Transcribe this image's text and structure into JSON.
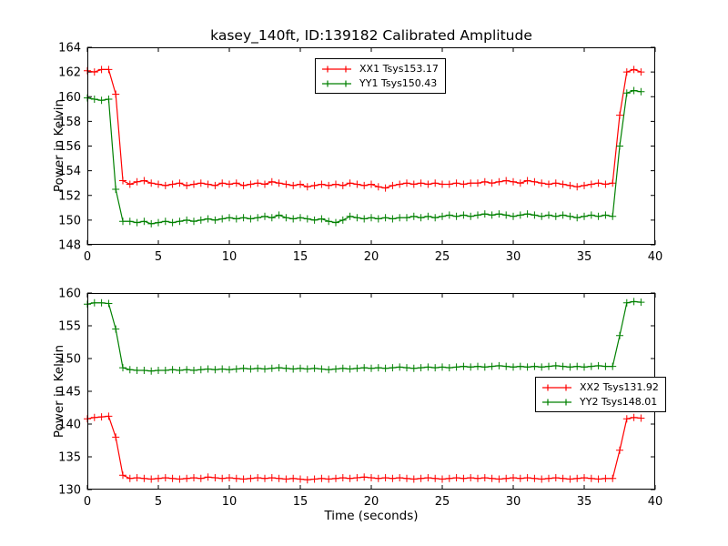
{
  "title": "kasey_140ft, ID:139182 Calibrated Amplitude",
  "colors": {
    "xx": "#ff0000",
    "yy": "#008000",
    "axes": "#000000",
    "background": "#ffffff"
  },
  "chart_data": [
    {
      "type": "line",
      "ylabel": "Power in Kelvin",
      "xlabel": "",
      "xlim": [
        0,
        40
      ],
      "ylim": [
        148,
        164
      ],
      "xticks": [
        0,
        5,
        10,
        15,
        20,
        25,
        30,
        35,
        40
      ],
      "yticks": [
        148,
        150,
        152,
        154,
        156,
        158,
        160,
        162,
        164
      ],
      "grid": false,
      "legend_position": "upper center",
      "x": [
        0,
        0.5,
        1,
        1.5,
        2,
        2.5,
        3,
        3.5,
        4,
        4.5,
        5,
        5.5,
        6,
        6.5,
        7,
        7.5,
        8,
        8.5,
        9,
        9.5,
        10,
        10.5,
        11,
        11.5,
        12,
        12.5,
        13,
        13.5,
        14,
        14.5,
        15,
        15.5,
        16,
        16.5,
        17,
        17.5,
        18,
        18.5,
        19,
        19.5,
        20,
        20.5,
        21,
        21.5,
        22,
        22.5,
        23,
        23.5,
        24,
        24.5,
        25,
        25.5,
        26,
        26.5,
        27,
        27.5,
        28,
        28.5,
        29,
        29.5,
        30,
        30.5,
        31,
        31.5,
        32,
        32.5,
        33,
        33.5,
        34,
        34.5,
        35,
        35.5,
        36,
        36.5,
        37,
        37.5,
        38,
        38.5,
        39
      ],
      "series": [
        {
          "name": "XX1 Tsys153.17",
          "tsys": 153.17,
          "color": "#ff0000",
          "marker": "plus",
          "values": [
            162.1,
            162.0,
            162.2,
            162.2,
            160.2,
            153.2,
            152.9,
            153.1,
            153.2,
            153.0,
            152.9,
            152.8,
            152.9,
            153.0,
            152.8,
            152.9,
            153.0,
            152.9,
            152.8,
            153.0,
            152.9,
            153.0,
            152.8,
            152.9,
            153.0,
            152.9,
            153.1,
            153.0,
            152.9,
            152.8,
            152.9,
            152.7,
            152.8,
            152.9,
            152.8,
            152.9,
            152.8,
            153.0,
            152.9,
            152.8,
            152.9,
            152.7,
            152.6,
            152.8,
            152.9,
            153.0,
            152.9,
            153.0,
            152.9,
            153.0,
            152.9,
            152.9,
            153.0,
            152.9,
            153.0,
            153.0,
            153.1,
            153.0,
            153.1,
            153.2,
            153.1,
            153.0,
            153.2,
            153.1,
            153.0,
            152.9,
            153.0,
            152.9,
            152.8,
            152.7,
            152.8,
            152.9,
            153.0,
            152.9,
            153.0,
            158.5,
            162.0,
            162.2,
            162.0
          ]
        },
        {
          "name": "YY1 Tsys150.43",
          "tsys": 150.43,
          "color": "#008000",
          "marker": "plus",
          "values": [
            159.9,
            159.8,
            159.7,
            159.8,
            152.5,
            149.9,
            149.9,
            149.8,
            149.9,
            149.7,
            149.8,
            149.9,
            149.8,
            149.9,
            150.0,
            149.9,
            150.0,
            150.1,
            150.0,
            150.1,
            150.2,
            150.1,
            150.2,
            150.1,
            150.2,
            150.3,
            150.2,
            150.4,
            150.2,
            150.1,
            150.2,
            150.1,
            150.0,
            150.1,
            149.9,
            149.8,
            150.0,
            150.3,
            150.2,
            150.1,
            150.2,
            150.1,
            150.2,
            150.1,
            150.2,
            150.2,
            150.3,
            150.2,
            150.3,
            150.2,
            150.3,
            150.4,
            150.3,
            150.4,
            150.3,
            150.4,
            150.5,
            150.4,
            150.5,
            150.4,
            150.3,
            150.4,
            150.5,
            150.4,
            150.3,
            150.4,
            150.3,
            150.4,
            150.3,
            150.2,
            150.3,
            150.4,
            150.3,
            150.4,
            150.3,
            156.0,
            160.3,
            160.5,
            160.4
          ]
        }
      ]
    },
    {
      "type": "line",
      "ylabel": "Power in Kelvin",
      "xlabel": "Time (seconds)",
      "xlim": [
        0,
        40
      ],
      "ylim": [
        130,
        160
      ],
      "xticks": [
        0,
        5,
        10,
        15,
        20,
        25,
        30,
        35,
        40
      ],
      "yticks": [
        130,
        135,
        140,
        145,
        150,
        155,
        160
      ],
      "grid": false,
      "legend_position": "right",
      "x": [
        0,
        0.5,
        1,
        1.5,
        2,
        2.5,
        3,
        3.5,
        4,
        4.5,
        5,
        5.5,
        6,
        6.5,
        7,
        7.5,
        8,
        8.5,
        9,
        9.5,
        10,
        10.5,
        11,
        11.5,
        12,
        12.5,
        13,
        13.5,
        14,
        14.5,
        15,
        15.5,
        16,
        16.5,
        17,
        17.5,
        18,
        18.5,
        19,
        19.5,
        20,
        20.5,
        21,
        21.5,
        22,
        22.5,
        23,
        23.5,
        24,
        24.5,
        25,
        25.5,
        26,
        26.5,
        27,
        27.5,
        28,
        28.5,
        29,
        29.5,
        30,
        30.5,
        31,
        31.5,
        32,
        32.5,
        33,
        33.5,
        34,
        34.5,
        35,
        35.5,
        36,
        36.5,
        37,
        37.5,
        38,
        38.5,
        39
      ],
      "series": [
        {
          "name": "XX2 Tsys131.92",
          "tsys": 131.92,
          "color": "#ff0000",
          "marker": "plus",
          "values": [
            140.8,
            141.0,
            141.1,
            141.2,
            138.0,
            132.2,
            131.7,
            131.8,
            131.7,
            131.6,
            131.7,
            131.8,
            131.7,
            131.6,
            131.7,
            131.8,
            131.7,
            131.9,
            131.8,
            131.7,
            131.8,
            131.7,
            131.6,
            131.7,
            131.8,
            131.7,
            131.8,
            131.7,
            131.6,
            131.7,
            131.6,
            131.5,
            131.6,
            131.7,
            131.6,
            131.7,
            131.8,
            131.7,
            131.8,
            131.9,
            131.8,
            131.7,
            131.8,
            131.7,
            131.8,
            131.7,
            131.6,
            131.7,
            131.8,
            131.7,
            131.6,
            131.7,
            131.8,
            131.7,
            131.8,
            131.7,
            131.8,
            131.7,
            131.6,
            131.7,
            131.8,
            131.7,
            131.8,
            131.7,
            131.6,
            131.7,
            131.8,
            131.7,
            131.6,
            131.7,
            131.8,
            131.7,
            131.6,
            131.7,
            131.7,
            136.0,
            140.8,
            141.0,
            140.9
          ]
        },
        {
          "name": "YY2 Tsys148.01",
          "tsys": 148.01,
          "color": "#008000",
          "marker": "plus",
          "values": [
            158.3,
            158.5,
            158.5,
            158.4,
            154.5,
            148.6,
            148.3,
            148.2,
            148.2,
            148.1,
            148.2,
            148.2,
            148.3,
            148.2,
            148.3,
            148.2,
            148.3,
            148.4,
            148.3,
            148.4,
            148.3,
            148.4,
            148.5,
            148.4,
            148.5,
            148.4,
            148.5,
            148.6,
            148.5,
            148.4,
            148.5,
            148.4,
            148.5,
            148.4,
            148.3,
            148.4,
            148.5,
            148.4,
            148.5,
            148.6,
            148.5,
            148.6,
            148.5,
            148.6,
            148.7,
            148.6,
            148.5,
            148.6,
            148.7,
            148.6,
            148.7,
            148.6,
            148.7,
            148.8,
            148.7,
            148.8,
            148.7,
            148.8,
            148.9,
            148.8,
            148.7,
            148.8,
            148.7,
            148.8,
            148.7,
            148.8,
            148.9,
            148.8,
            148.7,
            148.8,
            148.7,
            148.8,
            148.9,
            148.8,
            148.8,
            153.5,
            158.5,
            158.7,
            158.6
          ]
        }
      ]
    }
  ]
}
